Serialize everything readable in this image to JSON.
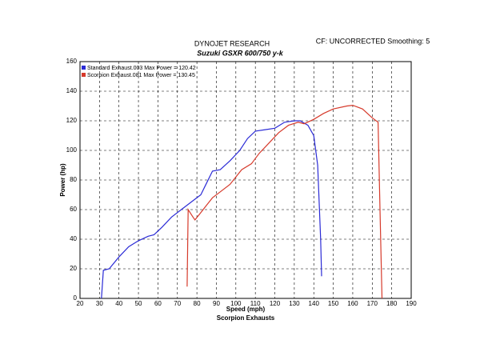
{
  "chart_data": {
    "type": "line",
    "title": "DYNOJET RESEARCH",
    "subtitle": "Suzuki GSXR 600/750 y-k",
    "annotation": "CF: UNCORRECTED  Smoothing: 5",
    "x_label": "Speed (mph)",
    "x_sublabel": "Scorpion Exhausts",
    "y_label": "Power (hp)",
    "xlim": [
      20,
      190
    ],
    "ylim": [
      0,
      160
    ],
    "xticks": [
      20,
      30,
      40,
      50,
      60,
      70,
      80,
      90,
      100,
      110,
      120,
      130,
      140,
      150,
      160,
      170,
      180,
      190
    ],
    "yticks": [
      0,
      20,
      40,
      60,
      80,
      100,
      120,
      140,
      160
    ],
    "grid": true,
    "legend": "top-left",
    "series": [
      {
        "name": "Standard Exhaust.003 Max Power = 120.42",
        "color": "#2b2bd6",
        "x": [
          31,
          32,
          35,
          40,
          45,
          50,
          55,
          58,
          62,
          67,
          72,
          78,
          82,
          85,
          88,
          92,
          97,
          102,
          106,
          110,
          115,
          120,
          125,
          130,
          133,
          137,
          140,
          142,
          143.5,
          144
        ],
        "values": [
          0,
          19,
          20,
          28,
          35,
          39,
          42,
          43,
          48,
          55,
          60,
          66,
          70,
          78,
          86,
          87,
          93,
          100,
          108,
          113,
          114,
          115,
          119,
          120,
          120,
          117,
          110,
          90,
          40,
          15
        ]
      },
      {
        "name": "Scorpion Exhaust.081 Max Power = 130.45",
        "color": "#d63a2b",
        "x": [
          75,
          75.5,
          78,
          79,
          82,
          85,
          88,
          92,
          97,
          100,
          103,
          108,
          112,
          117,
          122,
          127,
          132,
          135,
          140,
          145,
          150,
          157,
          160,
          165,
          170,
          172,
          173,
          174,
          175
        ],
        "values": [
          8,
          60,
          55,
          53,
          58,
          63,
          68,
          72,
          77,
          82,
          87,
          91,
          98,
          105,
          112,
          117,
          119,
          118,
          121,
          125,
          128,
          130,
          130.5,
          128,
          122,
          120,
          119,
          60,
          0
        ]
      }
    ]
  }
}
